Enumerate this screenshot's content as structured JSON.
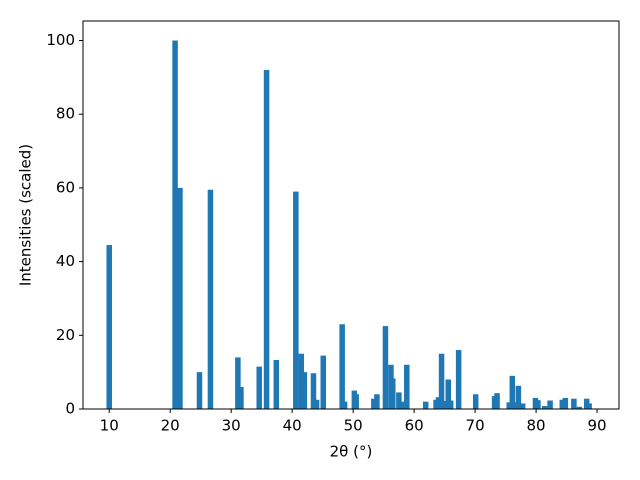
{
  "chart_data": {
    "type": "bar",
    "xlabel": "2θ (°)",
    "ylabel": "Intensities (scaled)",
    "x": [
      10.0,
      20.8,
      21.6,
      24.8,
      26.6,
      31.1,
      31.6,
      34.6,
      35.8,
      37.4,
      40.6,
      41.5,
      42.0,
      43.5,
      44.0,
      45.1,
      48.2,
      48.6,
      50.2,
      50.5,
      53.4,
      53.9,
      55.3,
      56.2,
      56.5,
      57.5,
      57.9,
      58.8,
      61.9,
      63.6,
      64.0,
      64.5,
      65.1,
      65.6,
      66.0,
      67.3,
      70.1,
      73.2,
      73.6,
      75.6,
      76.1,
      76.5,
      77.1,
      77.8,
      79.9,
      80.3,
      81.4,
      82.3,
      84.3,
      84.8,
      86.2,
      87.1,
      88.3,
      88.7
    ],
    "values": [
      44.5,
      100,
      60,
      10,
      59.5,
      14,
      6,
      11.5,
      92,
      13.3,
      59,
      15,
      10,
      9.7,
      2.5,
      14.5,
      23,
      2,
      5,
      4,
      2.8,
      4,
      22.5,
      12,
      8.3,
      4.5,
      2,
      12,
      2,
      2.5,
      3.2,
      15,
      2.2,
      8,
      2.3,
      16,
      4,
      3.5,
      4.3,
      1.8,
      9,
      1.8,
      6.3,
      1.5,
      3,
      2.4,
      0.8,
      2.3,
      2.5,
      3,
      2.8,
      0.6,
      2.8,
      1.5
    ],
    "color": "#1f77b4",
    "xlim": [
      5.7,
      93.6
    ],
    "ylim": [
      0,
      105.3
    ],
    "xticks": [
      10,
      20,
      30,
      40,
      50,
      60,
      70,
      80,
      90
    ],
    "yticks": [
      0,
      20,
      40,
      60,
      80,
      100
    ]
  }
}
